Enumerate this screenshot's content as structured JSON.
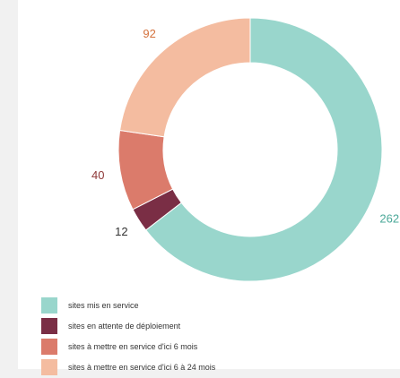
{
  "chart_data": {
    "type": "pie",
    "donut": true,
    "categories": [
      "sites mis en service",
      "sites en attente de déploiement",
      "sites à mettre en service d'ici 6 mois",
      "sites à mettre en service d'ici 6 à 24 mois"
    ],
    "values": [
      262,
      12,
      40,
      92
    ],
    "value_labels": [
      "262",
      "12",
      "40",
      "92"
    ],
    "colors": [
      "#99d6cc",
      "#7a2e45",
      "#db7b6b",
      "#f4bca0"
    ],
    "label_colors": [
      "#4aa898",
      "#333333",
      "#8e3838",
      "#d4723d"
    ],
    "title": "",
    "legend_position": "bottom-left"
  }
}
